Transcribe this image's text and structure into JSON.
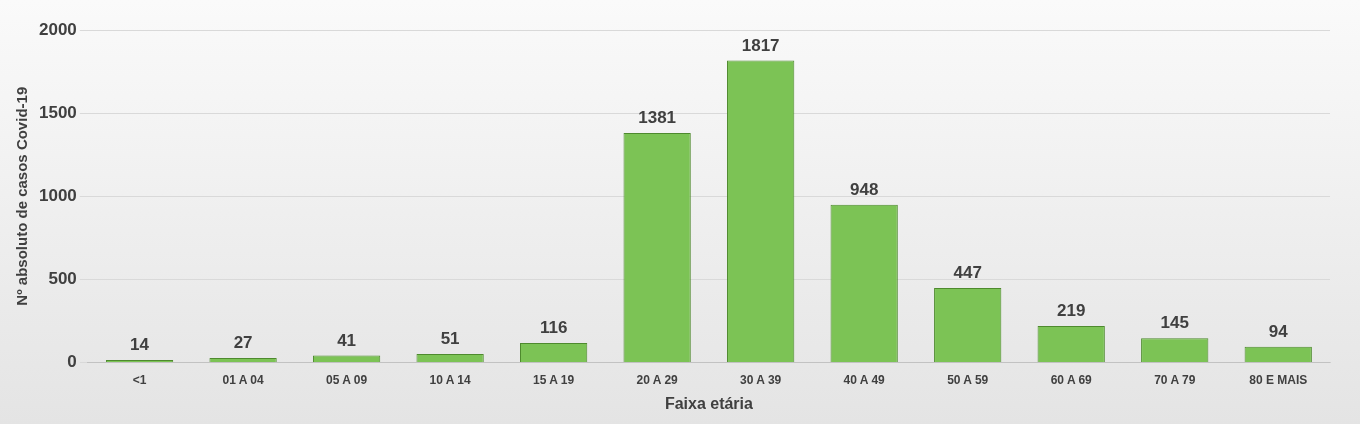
{
  "chart_data": {
    "type": "bar",
    "xlabel": "Faixa etária",
    "ylabel": "Nº absoluto de casos Covid-19",
    "categories": [
      "<1",
      "01 A 04",
      "05 A 09",
      "10 A 14",
      "15 A 19",
      "20 A 29",
      "30 A 39",
      "40 A 49",
      "50 A 59",
      "60 A 69",
      "70 A 79",
      "80 E MAIS"
    ],
    "values": [
      14,
      27,
      41,
      51,
      116,
      1381,
      1817,
      948,
      447,
      219,
      145,
      94
    ],
    "color": "#7cc355",
    "ylim": [
      0,
      2000
    ],
    "yticks": [
      0,
      500,
      1000,
      1500,
      2000
    ],
    "grid": "y",
    "data_labels": true
  }
}
